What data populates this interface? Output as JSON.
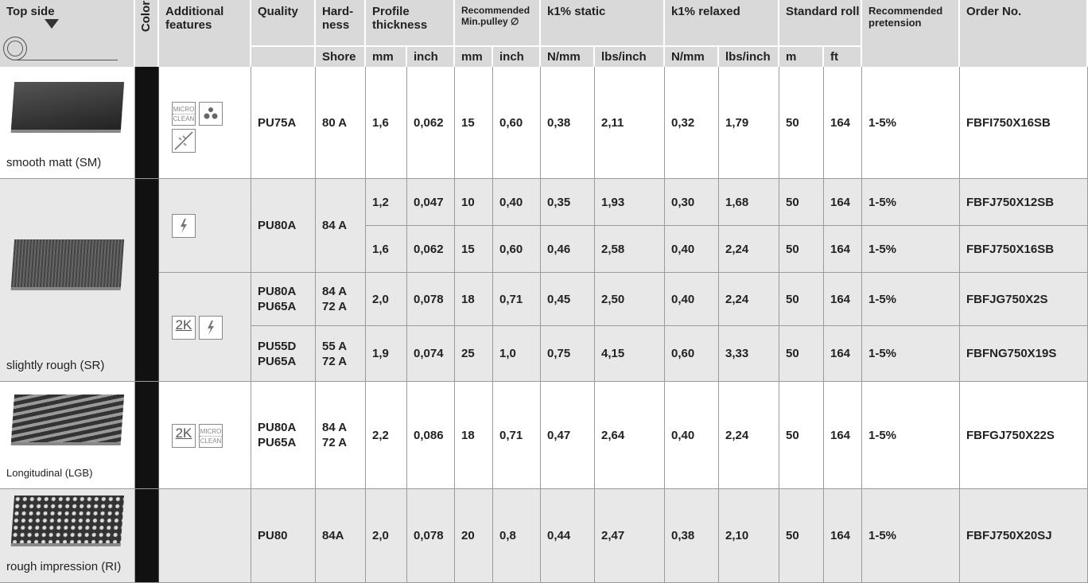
{
  "header": {
    "top_side": "Top side",
    "color": "Color",
    "additional_features": "Additional features",
    "quality": "Quality",
    "hardness": "Hard-ness",
    "profile_thickness": "Profile thickness",
    "pulley_1": "Recommended",
    "pulley_2": "Min.pulley ∅",
    "k1_static": "k1% static",
    "k1_relaxed": "k1% relaxed",
    "standard_roll": "Standard roll",
    "pretension": "Recommended pretension",
    "order_no": "Order No."
  },
  "units": [
    "Shore",
    "mm",
    "inch",
    "mm",
    "inch",
    "N/mm",
    "lbs/inch",
    "N/mm",
    "lbs/inch",
    "m",
    "ft"
  ],
  "icon_labels": {
    "micro": "MICRO",
    "clean": "CLEAN",
    "two_k": "2K"
  },
  "groups": [
    {
      "top_side": "smooth matt (SM)",
      "blocks": [
        {
          "materials": [
            {
              "quality": [
                "PU75A"
              ],
              "hardness": [
                "80 A"
              ],
              "rows": [
                [
                  "1,6",
                  "0,062",
                  "15",
                  "0,60",
                  "0,38",
                  "2,11",
                  "0,32",
                  "1,79",
                  "50",
                  "164",
                  "1-5%",
                  "FBFI750X16SB"
                ]
              ]
            }
          ]
        }
      ]
    },
    {
      "top_side": "slightly rough (SR)",
      "blocks": [
        {
          "materials": [
            {
              "quality": [
                "PU80A"
              ],
              "hardness": [
                "84 A"
              ],
              "rows": [
                [
                  "1,2",
                  "0,047",
                  "10",
                  "0,40",
                  "0,35",
                  "1,93",
                  "0,30",
                  "1,68",
                  "50",
                  "164",
                  "1-5%",
                  "FBFJ750X12SB"
                ],
                [
                  "1,6",
                  "0,062",
                  "15",
                  "0,60",
                  "0,46",
                  "2,58",
                  "0,40",
                  "2,24",
                  "50",
                  "164",
                  "1-5%",
                  "FBFJ750X16SB"
                ]
              ]
            }
          ]
        },
        {
          "materials": [
            {
              "quality": [
                "PU80A",
                "PU65A"
              ],
              "hardness": [
                "84 A",
                "72 A"
              ],
              "rows": [
                [
                  "2,0",
                  "0,078",
                  "18",
                  "0,71",
                  "0,45",
                  "2,50",
                  "0,40",
                  "2,24",
                  "50",
                  "164",
                  "1-5%",
                  "FBFJG750X2S"
                ]
              ]
            },
            {
              "quality": [
                "PU55D",
                "PU65A"
              ],
              "hardness": [
                "55 A",
                "72 A"
              ],
              "rows": [
                [
                  "1,9",
                  "0,074",
                  "25",
                  "1,0",
                  "0,75",
                  "4,15",
                  "0,60",
                  "3,33",
                  "50",
                  "164",
                  "1-5%",
                  "FBFNG750X19S"
                ]
              ]
            }
          ]
        }
      ]
    },
    {
      "top_side": "Longitudinal (LGB)",
      "blocks": [
        {
          "materials": [
            {
              "quality": [
                "PU80A",
                "PU65A"
              ],
              "hardness": [
                "84 A",
                "72 A"
              ],
              "rows": [
                [
                  "2,2",
                  "0,086",
                  "18",
                  "0,71",
                  "0,47",
                  "2,64",
                  "0,40",
                  "2,24",
                  "50",
                  "164",
                  "1-5%",
                  "FBFGJ750X22S"
                ]
              ]
            }
          ]
        }
      ]
    },
    {
      "top_side": "rough impression (RI)",
      "blocks": [
        {
          "materials": [
            {
              "quality": [
                "PU80"
              ],
              "hardness": [
                "84A"
              ],
              "rows": [
                [
                  "2,0",
                  "0,078",
                  "20",
                  "0,8",
                  "0,44",
                  "2,47",
                  "0,38",
                  "2,10",
                  "50",
                  "164",
                  "1-5%",
                  "FBFJ750X20SJ"
                ]
              ]
            }
          ]
        }
      ]
    }
  ]
}
